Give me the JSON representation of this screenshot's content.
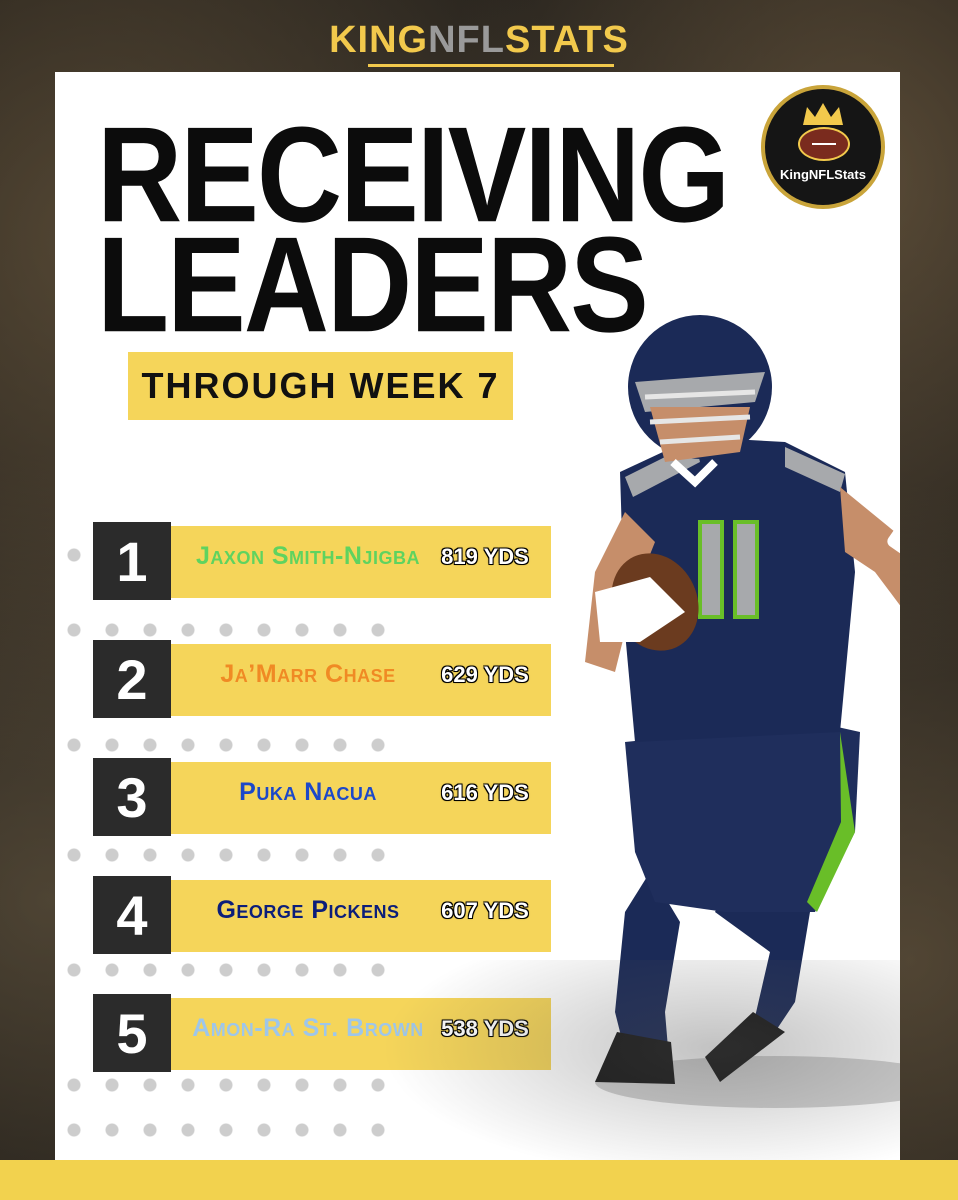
{
  "brand": {
    "king": "KING",
    "nfl": "NFL",
    "stats": "STATS"
  },
  "title": {
    "line1": "RECEIVING",
    "line2": "LEADERS"
  },
  "subtitle": "THROUGH WEEK 7",
  "logo": {
    "text": "KingNFLStats",
    "icon": "crown-football-logo"
  },
  "leaders": [
    {
      "rank": "1",
      "name": "Jaxon Smith-Njigba",
      "yards": "819 YDS",
      "color": "#5fd35f"
    },
    {
      "rank": "2",
      "name": "Ja’Marr Chase",
      "yards": "629 YDS",
      "color": "#f08a24"
    },
    {
      "rank": "3",
      "name": "Puka Nacua",
      "yards": "616 YDS",
      "color": "#1c48c9"
    },
    {
      "rank": "4",
      "name": "George Pickens",
      "yards": "607 YDS",
      "color": "#0c1e7a"
    },
    {
      "rank": "5",
      "name": "Amon-Ra St. Brown",
      "yards": "538 YDS",
      "color": "#9ec6ea"
    }
  ],
  "colors": {
    "accent": "#f5d55a",
    "dark": "#2b2b2b",
    "player_jersey": "#1b2a57",
    "player_trim": "#69be28"
  }
}
